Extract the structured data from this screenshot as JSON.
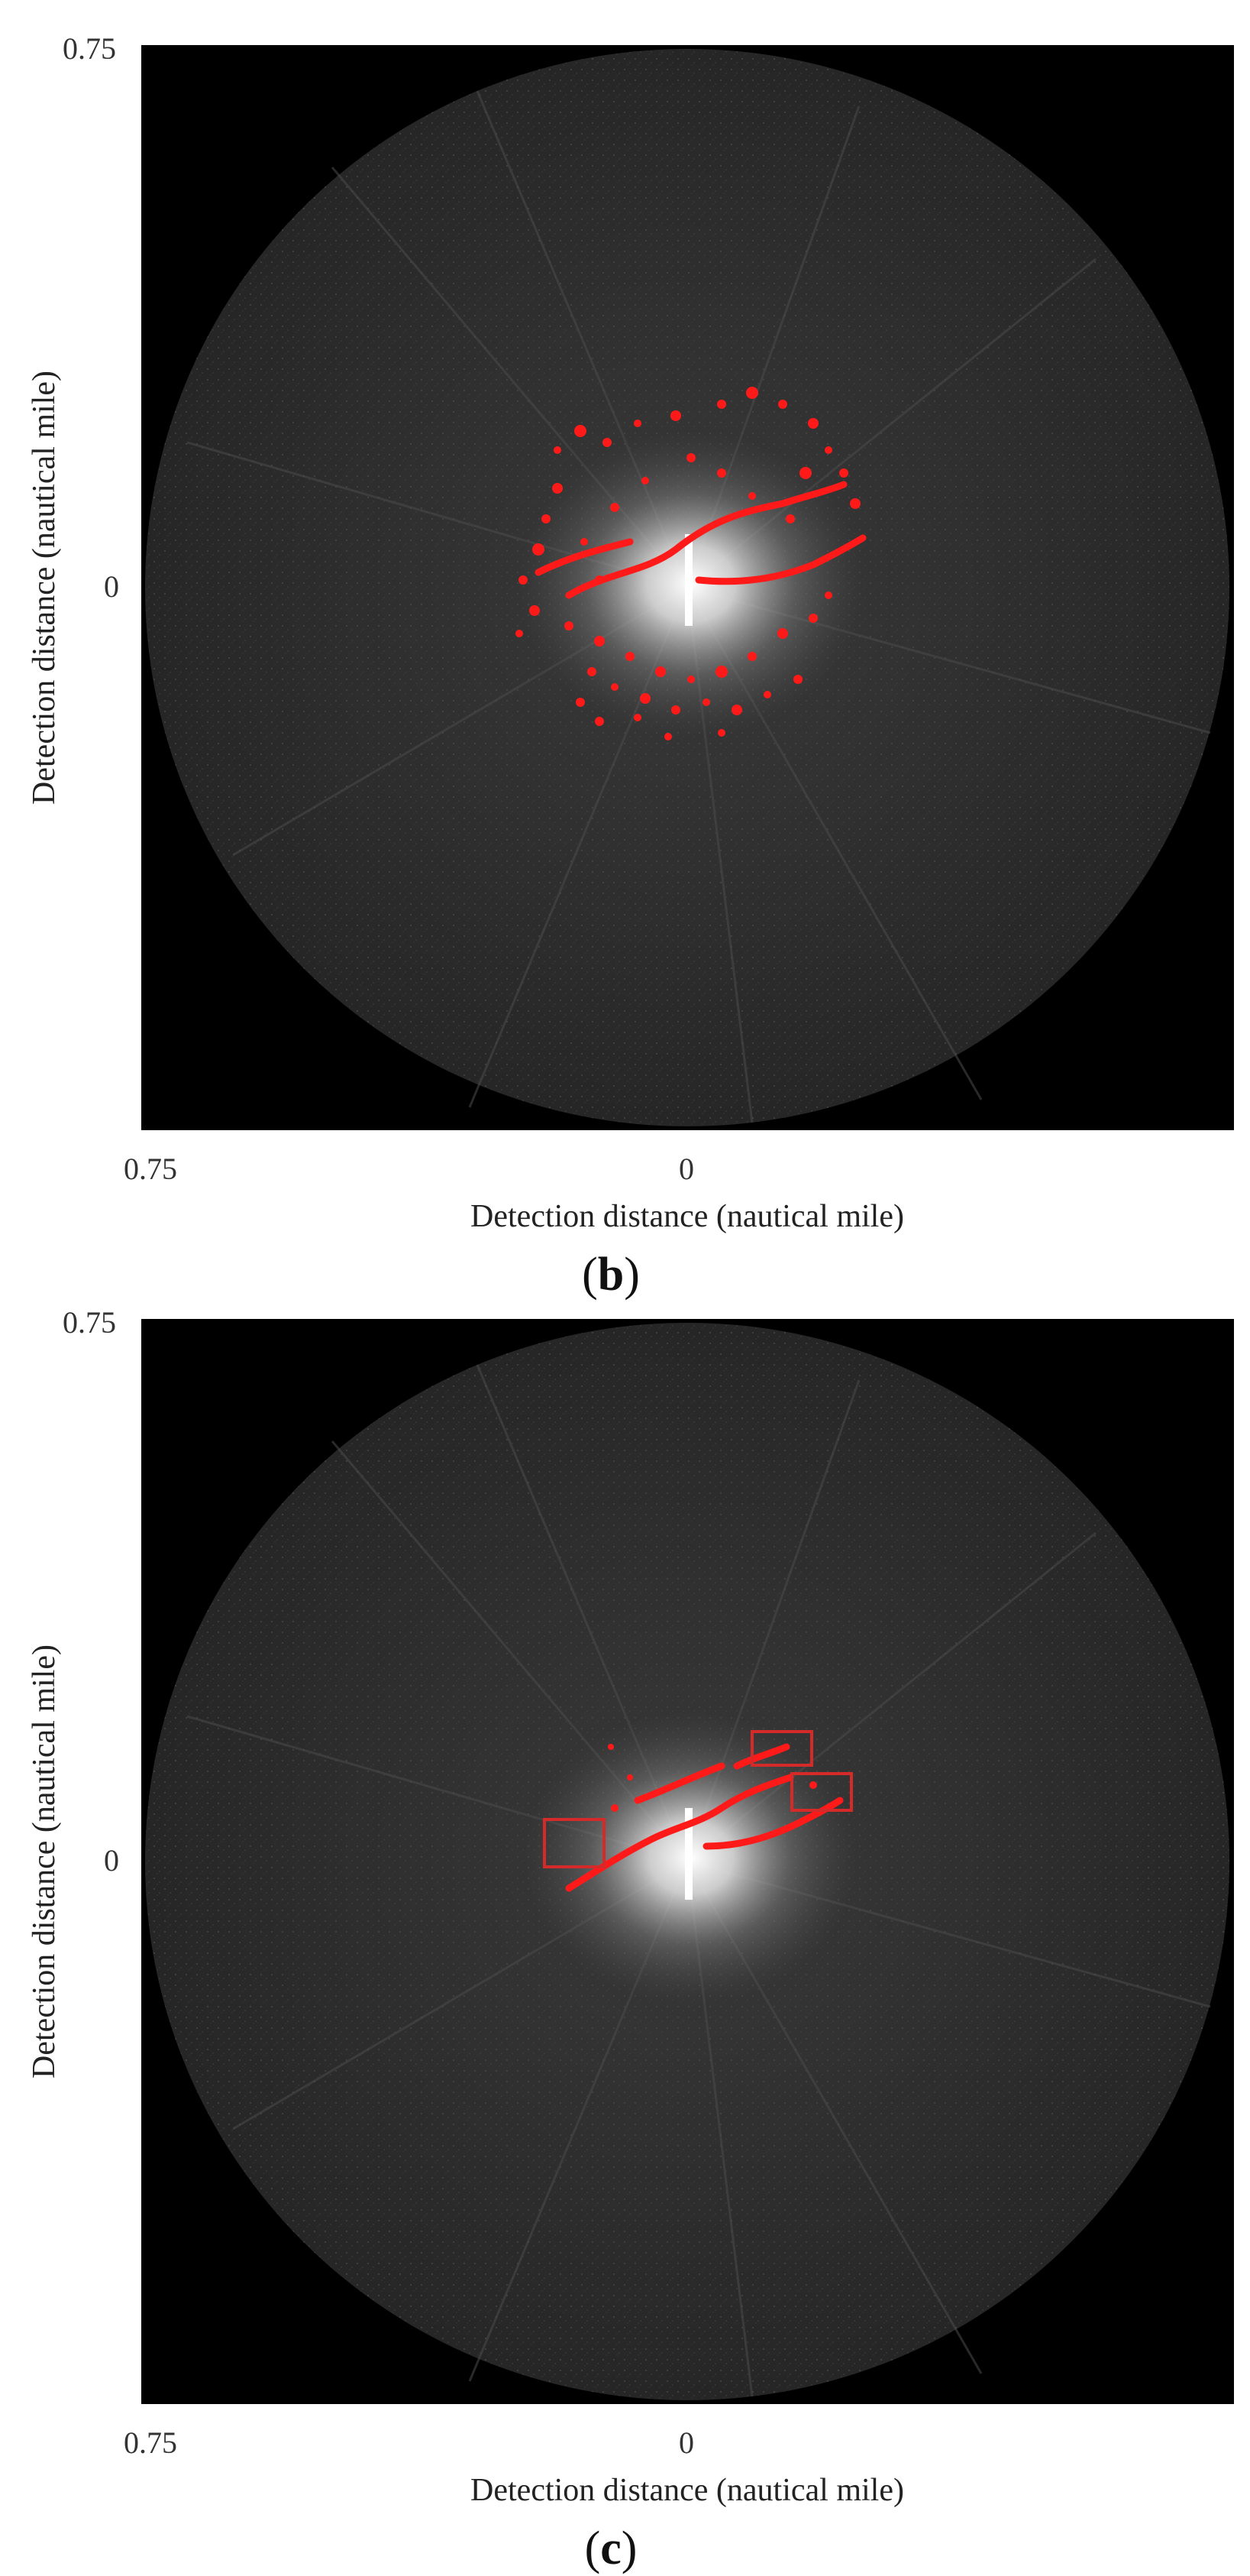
{
  "panels": [
    {
      "id": "b",
      "caption_open": "(",
      "caption_letter": "b",
      "caption_close": ")",
      "y_tick_top": "0.75",
      "y_tick_mid": "0",
      "x_tick_left": "0.75",
      "x_tick_mid": "0",
      "x_label": "Detection distance (nautical mile)",
      "y_label": "Detection distance (nautical mile)",
      "overlay": "scattered red clutter blobs and red target streaks"
    },
    {
      "id": "c",
      "caption_open": "(",
      "caption_letter": "c",
      "caption_close": ")",
      "y_tick_top": "0.75",
      "y_tick_mid": "0",
      "x_tick_left": "0.75",
      "x_tick_mid": "0",
      "x_label": "Detection distance (nautical mile)",
      "y_label": "Detection distance (nautical mile)",
      "overlay": "red target streaks with three red bounding boxes",
      "box_color": "#d42a2a"
    }
  ],
  "colors": {
    "background": "#000000",
    "radar_field": "#2a2a2a",
    "detection": "#ff1a1a"
  }
}
